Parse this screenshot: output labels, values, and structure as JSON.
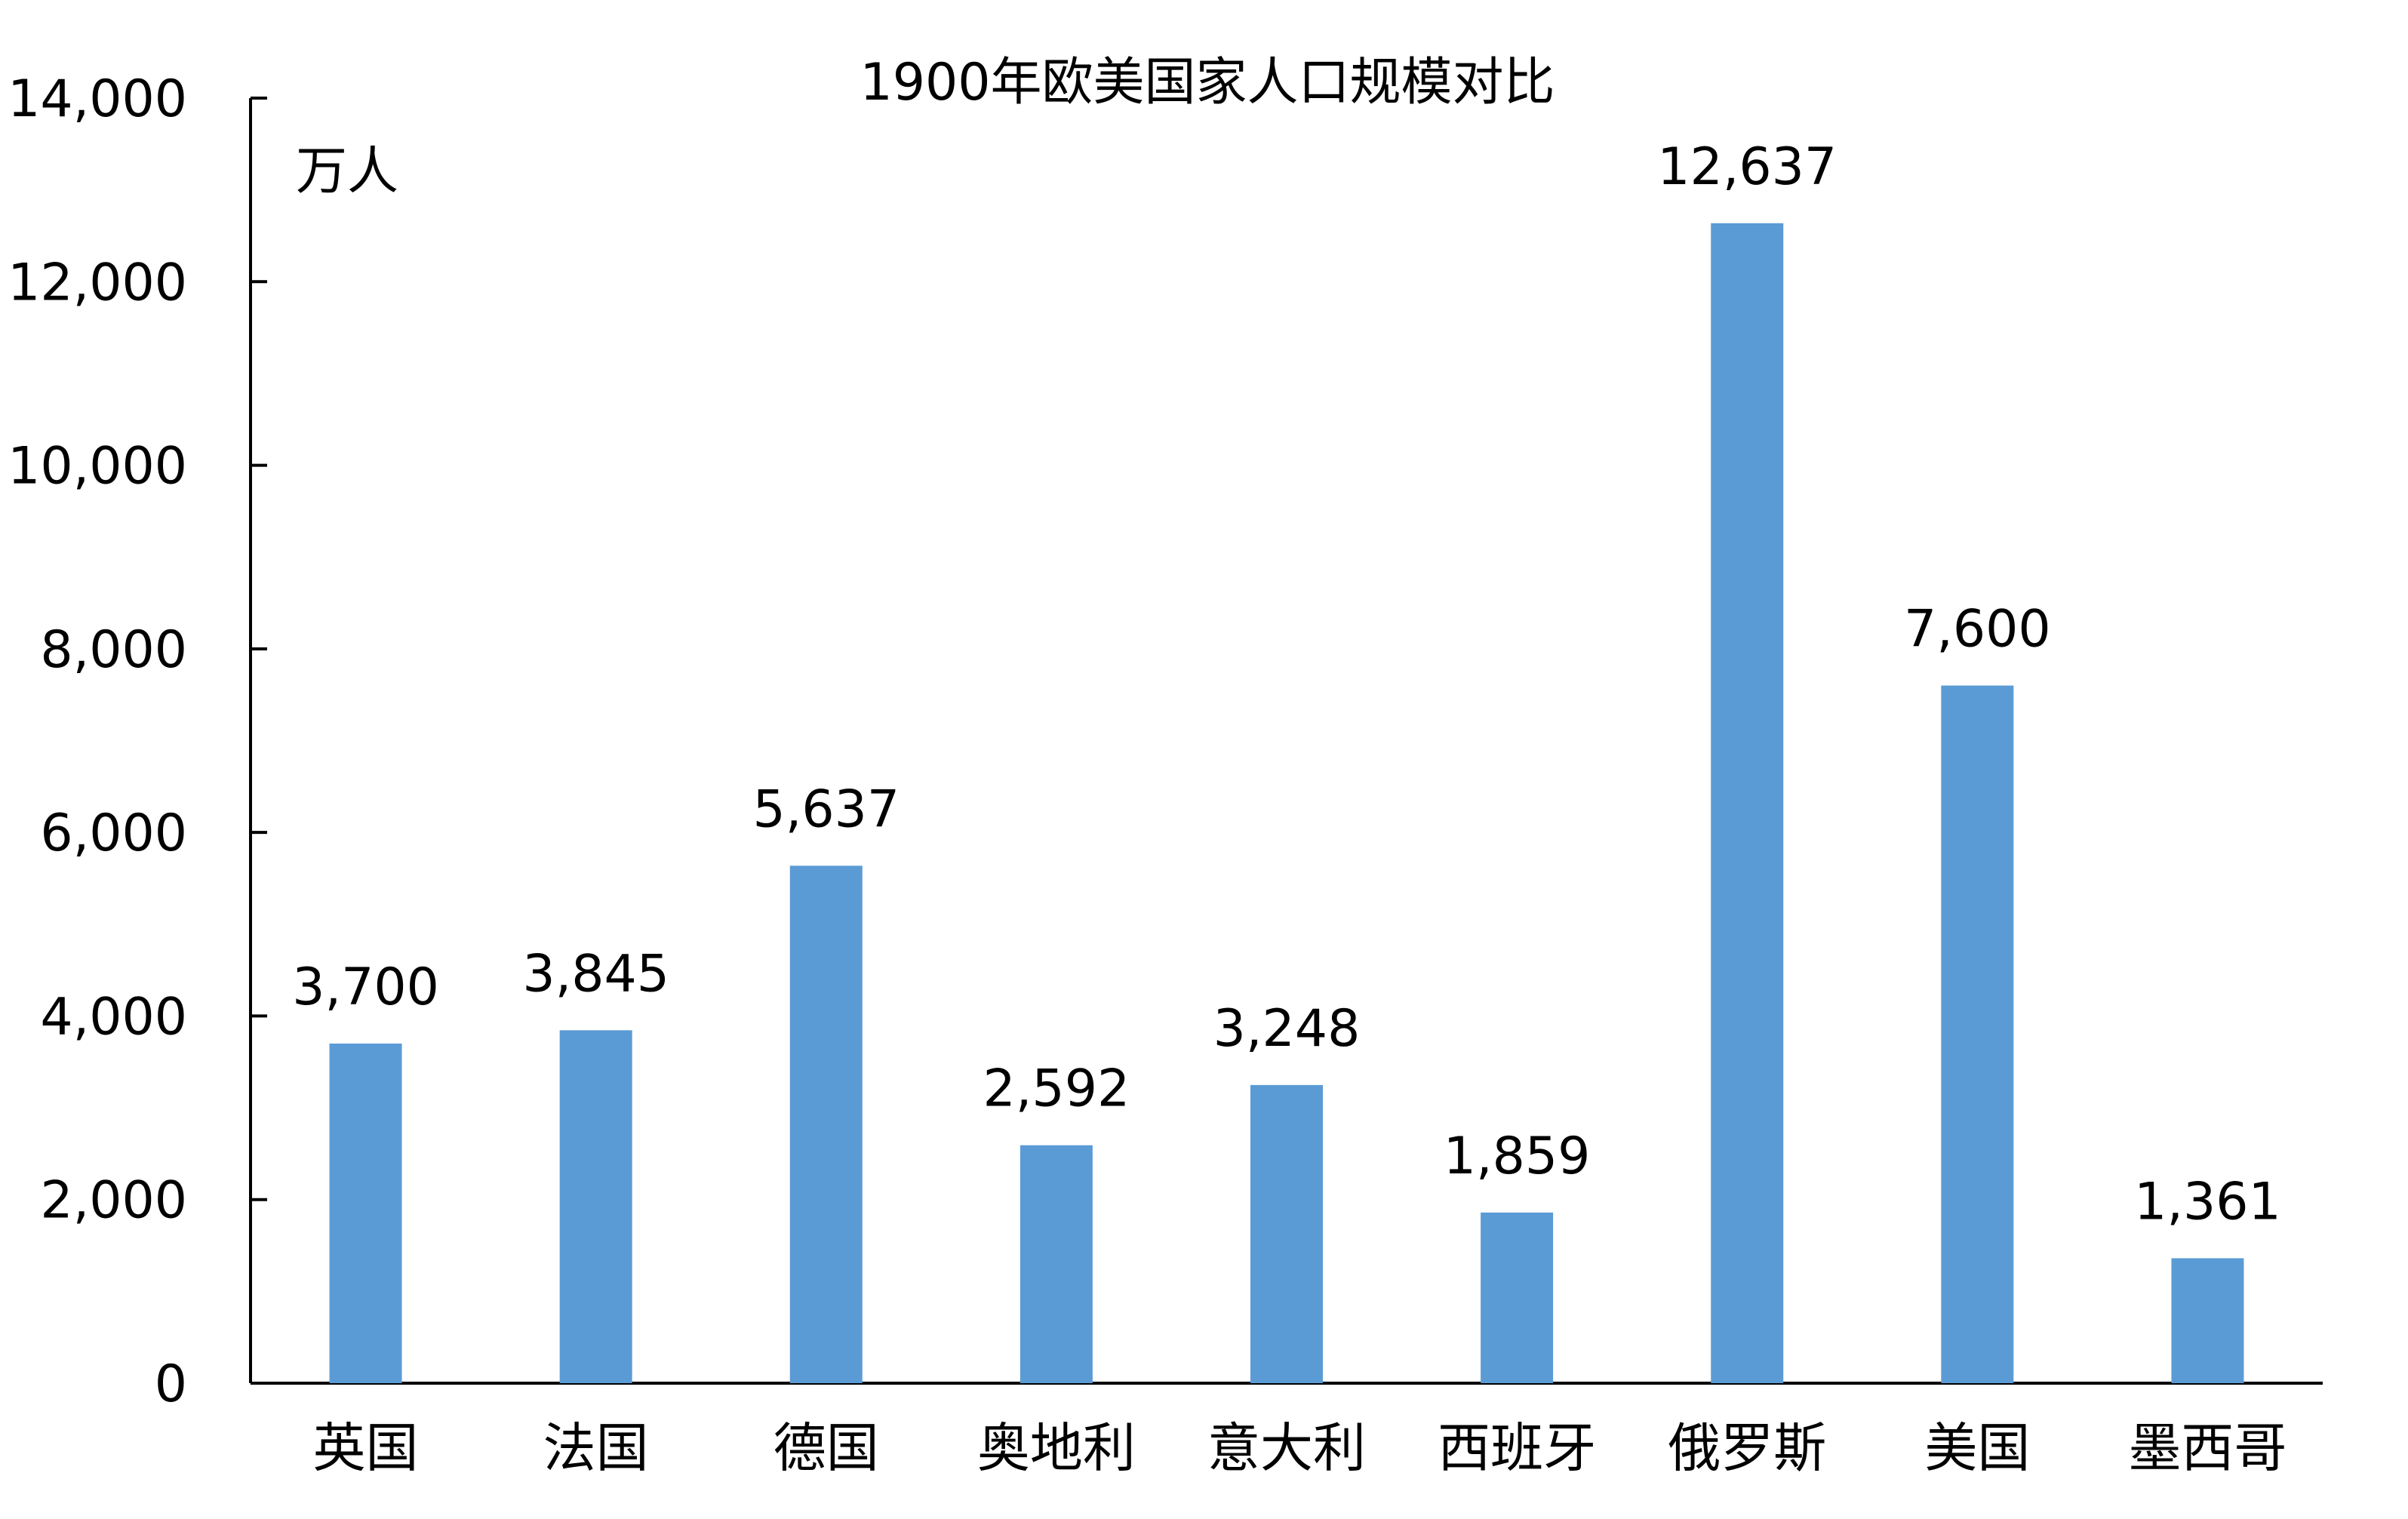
{
  "chart_data": {
    "type": "bar",
    "title": "1900年欧美国家人口规模对比",
    "unit_label": "万人",
    "xlabel": "",
    "ylabel": "",
    "categories": [
      "英国",
      "法国",
      "德国",
      "奥地利",
      "意大利",
      "西班牙",
      "俄罗斯",
      "美国",
      "墨西哥"
    ],
    "values": [
      3700,
      3845,
      5637,
      2592,
      3248,
      1859,
      12637,
      7600,
      1361
    ],
    "data_labels": [
      "3,700",
      "3,845",
      "5,637",
      "2,592",
      "3,248",
      "1,859",
      "12,637",
      "7,600",
      "1,361"
    ],
    "ylim": [
      0,
      14000
    ],
    "y_ticks": [
      0,
      2000,
      4000,
      6000,
      8000,
      10000,
      12000,
      14000
    ],
    "y_tick_labels": [
      "0",
      "2,000",
      "4,000",
      "6,000",
      "8,000",
      "10,000",
      "12,000",
      "14,000"
    ],
    "grid": false,
    "legend": "none",
    "bar_color": "#5b9bd5",
    "axis_color": "#000000"
  }
}
